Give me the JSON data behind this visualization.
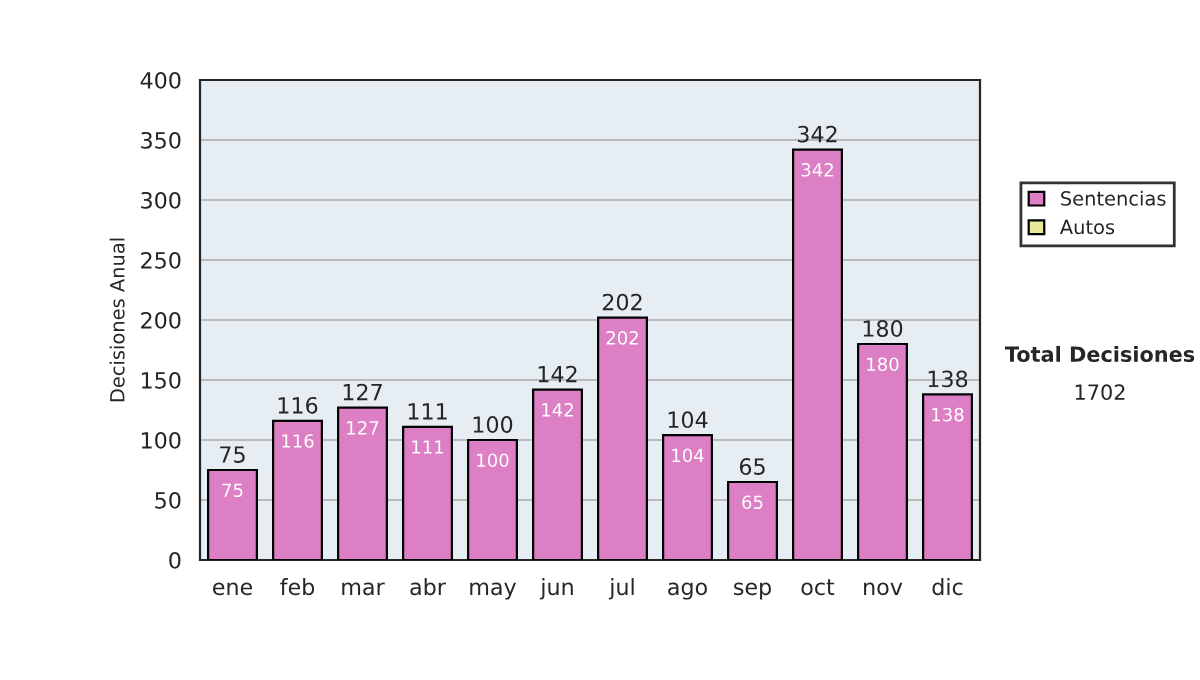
{
  "chart_data": {
    "type": "bar",
    "ylabel": "Decisiones Anual",
    "categories": [
      "ene",
      "feb",
      "mar",
      "abr",
      "may",
      "jun",
      "jul",
      "ago",
      "sep",
      "oct",
      "nov",
      "dic"
    ],
    "series": [
      {
        "name": "Sentencias",
        "color": "#dd7fc4",
        "values": [
          75,
          116,
          127,
          111,
          100,
          142,
          202,
          104,
          65,
          342,
          180,
          138
        ],
        "value_labels": [
          "75",
          "116",
          "127",
          "111",
          "100",
          "142",
          "202",
          "104",
          "65",
          "342",
          "180",
          "138"
        ]
      },
      {
        "name": "Autos",
        "color": "#e8e89a",
        "values": [
          0,
          0,
          0,
          0,
          0,
          0,
          0,
          0,
          0,
          0,
          0,
          0
        ]
      }
    ],
    "stacked": true,
    "totals": [
      "75",
      "116",
      "127",
      "111",
      "100",
      "142",
      "202",
      "104",
      "65",
      "342",
      "180",
      "138"
    ],
    "ylim": [
      0,
      400
    ],
    "yticks": [
      0,
      50,
      100,
      150,
      200,
      250,
      300,
      350,
      400
    ],
    "grid": "y",
    "legend": "right",
    "annotations": [
      "Total Decisiones",
      "1702"
    ]
  }
}
